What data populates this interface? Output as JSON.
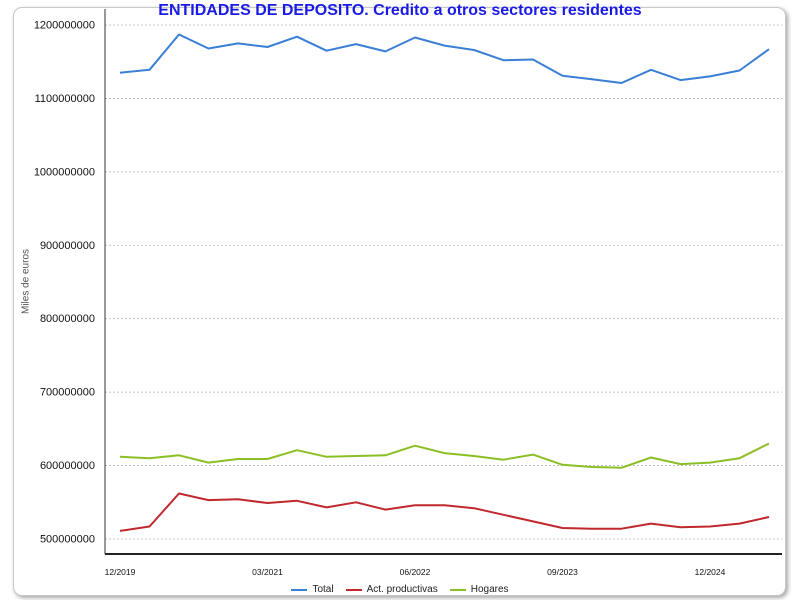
{
  "chart_data": {
    "type": "line",
    "title": "ENTIDADES DE DEPOSITO. Credito a otros sectores residentes",
    "ylabel": "Miles de euros",
    "ylim": [
      500000000,
      1200000000
    ],
    "yticks": [
      500000000,
      600000000,
      700000000,
      800000000,
      900000000,
      1000000000,
      1100000000,
      1200000000
    ],
    "ytick_labels": [
      "500000000",
      "600000000",
      "700000000",
      "800000000",
      "900000000",
      "1000000000",
      "1100000000",
      "1200000000"
    ],
    "grid": true,
    "legend_position": "bottom",
    "x": [
      "12/2019",
      "03/2020",
      "06/2020",
      "09/2020",
      "12/2020",
      "03/2021",
      "06/2021",
      "09/2021",
      "12/2021",
      "03/2022",
      "06/2022",
      "09/2022",
      "12/2022",
      "03/2023",
      "06/2023",
      "09/2023",
      "12/2023",
      "03/2024",
      "06/2024",
      "09/2024",
      "12/2024",
      "03/2025",
      "06/2025"
    ],
    "xtick_labels": [
      "12/2019",
      "03/2021",
      "06/2022",
      "09/2023",
      "12/2024"
    ],
    "series": [
      {
        "name": "Total",
        "color": "#3a7fd6",
        "values": [
          1135000000,
          1139000000,
          1187000000,
          1168000000,
          1175000000,
          1170000000,
          1184000000,
          1165000000,
          1174000000,
          1164000000,
          1183000000,
          1172000000,
          1166000000,
          1152000000,
          1153000000,
          1131000000,
          1126000000,
          1121000000,
          1139000000,
          1125000000,
          1130000000,
          1138000000,
          1167000000
        ]
      },
      {
        "name": "Act. productivas",
        "color": "#c0282d",
        "values": [
          511000000,
          517000000,
          562000000,
          553000000,
          554000000,
          549000000,
          552000000,
          543000000,
          550000000,
          540000000,
          546000000,
          546000000,
          542000000,
          533000000,
          524000000,
          515000000,
          514000000,
          514000000,
          521000000,
          516000000,
          517000000,
          521000000,
          530000000
        ]
      },
      {
        "name": "Hogares",
        "color": "#8cbf26",
        "values": [
          612000000,
          610000000,
          614000000,
          604000000,
          609000000,
          609000000,
          621000000,
          612000000,
          613000000,
          614000000,
          627000000,
          617000000,
          613000000,
          608000000,
          615000000,
          601000000,
          598000000,
          597000000,
          611000000,
          602000000,
          604000000,
          610000000,
          630000000
        ]
      }
    ]
  }
}
